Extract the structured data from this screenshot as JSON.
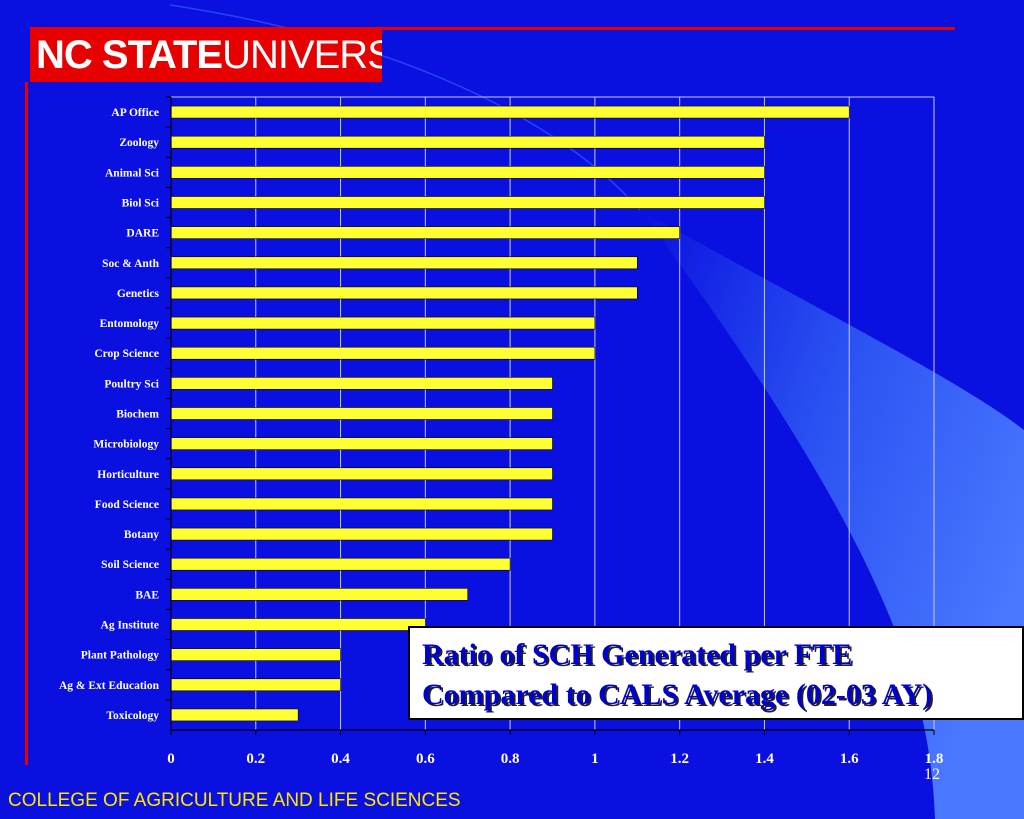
{
  "logo": {
    "bold": "NC STATE",
    "light": "UNIVERSITY"
  },
  "title_line1": "Ratio of SCH Generated per FTE",
  "title_line2": "Compared to CALS Average (02-03 AY)",
  "footer": "COLLEGE OF AGRICULTURE AND LIFE SCIENCES",
  "slide_number": "12",
  "colors": {
    "background": "#0a10e0",
    "bar": "#ffff33",
    "accent": "#e60000",
    "footer_text": "#ffe600"
  },
  "chart_data": {
    "type": "bar",
    "orientation": "horizontal",
    "title": "",
    "xlabel": "",
    "ylabel": "",
    "xlim": [
      0,
      1.8
    ],
    "grid": true,
    "legend": "none",
    "categories": [
      "AP Office",
      "Zoology",
      "Animal Sci",
      "Biol Sci",
      "DARE",
      "Soc & Anth",
      "Genetics",
      "Entomology",
      "Crop Science",
      "Poultry Sci",
      "Biochem",
      "Microbiology",
      "Horticulture",
      "Food Science",
      "Botany",
      "Soil Science",
      "BAE",
      "Ag Institute",
      "Plant Pathology",
      "Ag & Ext Education",
      "Toxicology"
    ],
    "values": [
      1.6,
      1.4,
      1.4,
      1.4,
      1.2,
      1.1,
      1.1,
      1.0,
      1.0,
      0.9,
      0.9,
      0.9,
      0.9,
      0.9,
      0.9,
      0.8,
      0.7,
      0.6,
      0.4,
      0.4,
      0.3
    ],
    "xticks": [
      "0",
      "0.2",
      "0.4",
      "0.6",
      "0.8",
      "1",
      "1.2",
      "1.4",
      "1.6",
      "1.8"
    ]
  }
}
